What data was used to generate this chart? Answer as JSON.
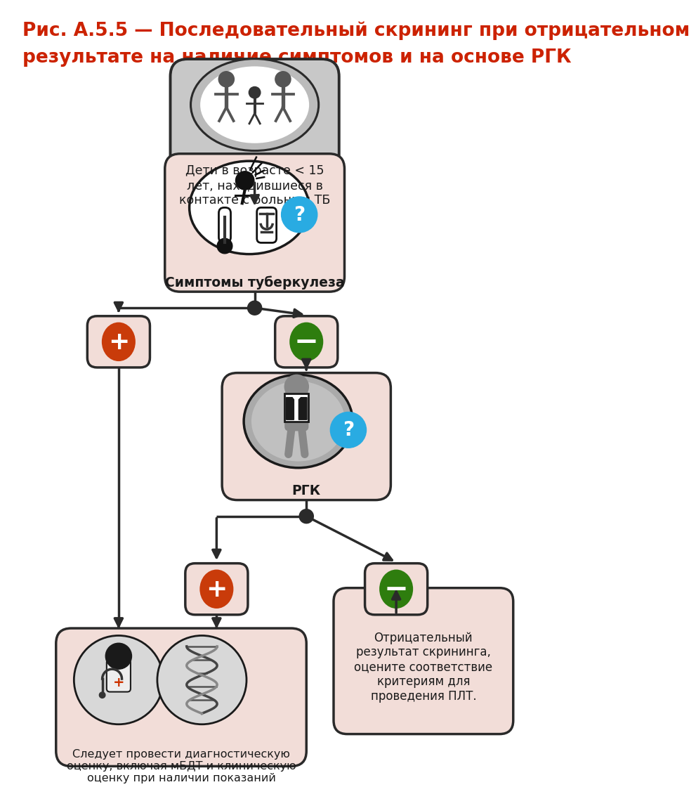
{
  "title_line1": "Рис. А.5.5 — Последовательный скрининг при отрицательном",
  "title_line2": "результате на наличие симптомов и на основе РГК",
  "title_color": "#CC2200",
  "title_fontsize": 19,
  "bg_color": "#FFFFFF",
  "box_pink": "#F2DDD8",
  "box_gray": "#C8C8C8",
  "box_border": "#2A2A2A",
  "arrow_color": "#2A2A2A",
  "red_oval": "#C93B0A",
  "green_oval": "#2E7D0E",
  "blue_circle": "#29ABE2",
  "node1_text": "Дети в возрасте < 15\nлет, находившиеся в\nконтакте с больным ТБ",
  "node2_text": "Симптомы туберкулеза",
  "node3_text": "РГК",
  "node4_text": "Следует провести диагностическую\nоценку, включая мБДТ и клиническую\nоценку при наличии показаний",
  "node5_text": "Отрицательный\nрезультат скрининга,\nоцените соответствие\nкритериям для\nпроведения ПЛТ."
}
